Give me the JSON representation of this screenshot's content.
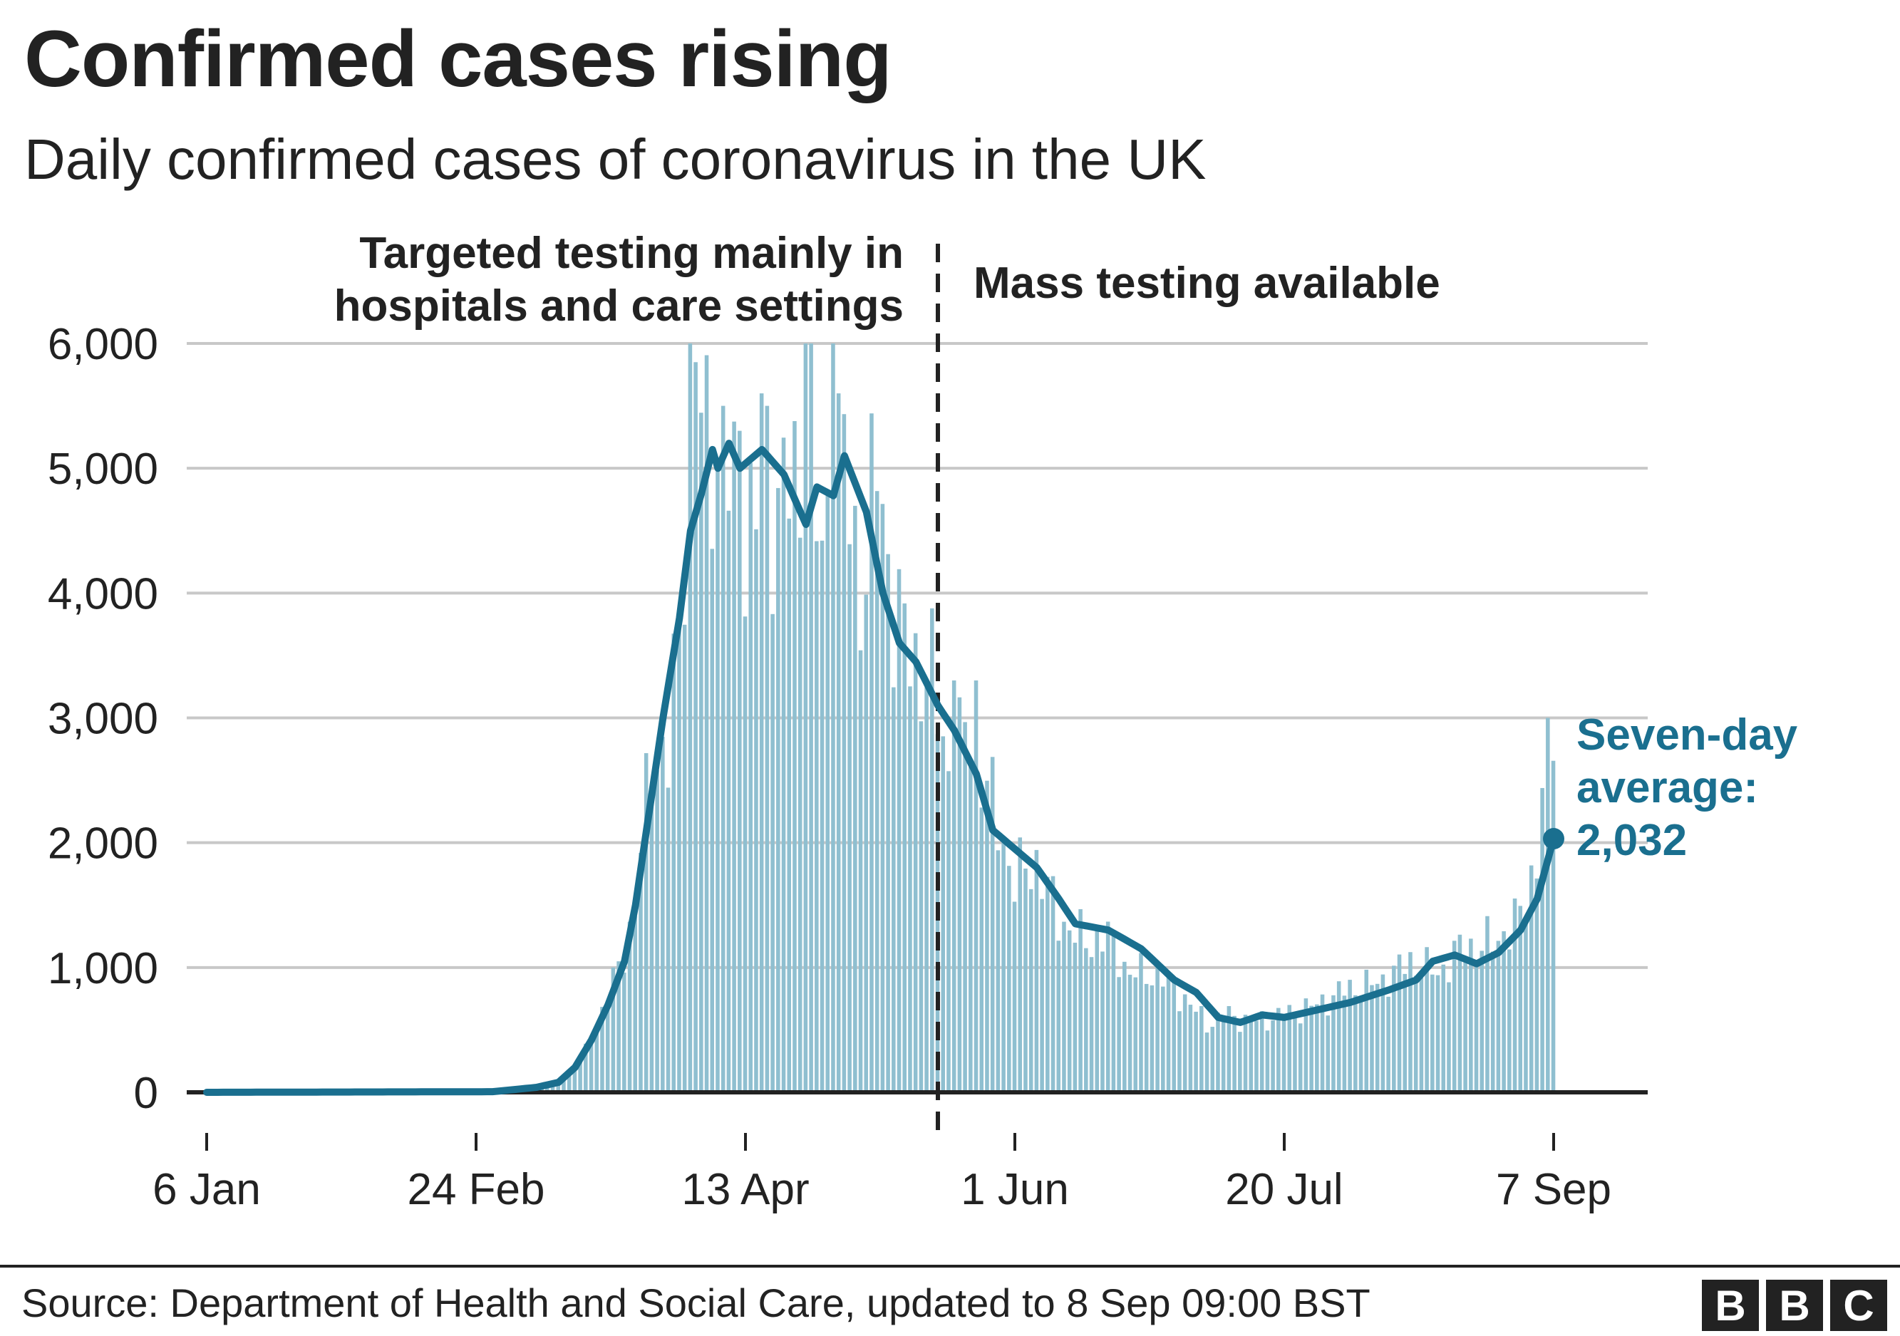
{
  "title": "Confirmed cases rising",
  "subtitle": "Daily confirmed cases of coronavirus in the UK",
  "source": "Source: Department of Health and Social Care, updated to 8 Sep 09:00 BST",
  "logo": "BBC",
  "colors": {
    "bars": "#8fbfd0",
    "line": "#1a6f8f",
    "grid": "#c8c8c8",
    "axis": "#222222"
  },
  "chart_data": {
    "type": "bar",
    "title": "Confirmed cases rising",
    "subtitle": "Daily confirmed cases of coronavirus in the UK",
    "xlabel": "",
    "ylabel": "",
    "ylim": [
      0,
      6000
    ],
    "yticks": [
      0,
      1000,
      2000,
      3000,
      4000,
      5000,
      6000
    ],
    "ytick_labels": [
      "0",
      "1,000",
      "2,000",
      "3,000",
      "4,000",
      "5,000",
      "6,000"
    ],
    "x_start": "2020-01-06",
    "x_end": "2020-09-07",
    "xticks": [
      {
        "date": "2020-01-06",
        "label": "6 Jan"
      },
      {
        "date": "2020-02-24",
        "label": "24 Feb"
      },
      {
        "date": "2020-04-13",
        "label": "13 Apr"
      },
      {
        "date": "2020-06-01",
        "label": "1 Jun"
      },
      {
        "date": "2020-07-20",
        "label": "20 Jul"
      },
      {
        "date": "2020-09-07",
        "label": "7 Sep"
      }
    ],
    "grid": true,
    "regions": [
      {
        "label_lines": [
          "Targeted testing mainly in",
          "hospitals and care settings"
        ]
      },
      {
        "label_lines": [
          "Mass testing available"
        ]
      }
    ],
    "divider_date": "2020-05-18",
    "series": [
      {
        "kind": "bars",
        "keypoints": [
          [
            "2020-01-06",
            0
          ],
          [
            "2020-02-28",
            5
          ],
          [
            "2020-03-06",
            40
          ],
          [
            "2020-03-09",
            60
          ],
          [
            "2020-03-12",
            130
          ],
          [
            "2020-03-15",
            330
          ],
          [
            "2020-03-18",
            650
          ],
          [
            "2020-03-21",
            1000
          ],
          [
            "2020-03-24",
            1450
          ],
          [
            "2020-03-27",
            2800
          ],
          [
            "2020-03-30",
            2600
          ],
          [
            "2020-04-02",
            4500
          ],
          [
            "2020-04-05",
            5300
          ],
          [
            "2020-04-08",
            5200
          ],
          [
            "2020-04-10",
            4900
          ],
          [
            "2020-04-13",
            4500
          ],
          [
            "2020-04-16",
            4600
          ],
          [
            "2020-04-20",
            4800
          ],
          [
            "2020-04-24",
            4900
          ],
          [
            "2020-04-27",
            4300
          ],
          [
            "2020-04-30",
            5300
          ],
          [
            "2020-05-04",
            4000
          ],
          [
            "2020-05-07",
            5000
          ],
          [
            "2020-05-10",
            3900
          ],
          [
            "2020-05-13",
            3500
          ],
          [
            "2020-05-17",
            3300
          ],
          [
            "2020-05-20",
            2600
          ],
          [
            "2020-05-24",
            2900
          ],
          [
            "2020-05-28",
            2300
          ],
          [
            "2020-06-01",
            1700
          ],
          [
            "2020-06-05",
            1850
          ],
          [
            "2020-06-09",
            1400
          ],
          [
            "2020-06-14",
            1200
          ],
          [
            "2020-06-18",
            1250
          ],
          [
            "2020-06-22",
            950
          ],
          [
            "2020-06-27",
            950
          ],
          [
            "2020-07-02",
            750
          ],
          [
            "2020-07-06",
            550
          ],
          [
            "2020-07-10",
            620
          ],
          [
            "2020-07-14",
            560
          ],
          [
            "2020-07-20",
            620
          ],
          [
            "2020-07-26",
            700
          ],
          [
            "2020-07-31",
            820
          ],
          [
            "2020-08-06",
            870
          ],
          [
            "2020-08-12",
            1050
          ],
          [
            "2020-08-17",
            950
          ],
          [
            "2020-08-21",
            1150
          ],
          [
            "2020-08-27",
            1200
          ],
          [
            "2020-09-01",
            1400
          ],
          [
            "2020-09-04",
            1900
          ],
          [
            "2020-09-06",
            2950
          ],
          [
            "2020-09-07",
            2950
          ]
        ],
        "peaks": [
          [
            "2020-04-03",
            6000
          ],
          [
            "2020-04-04",
            5850
          ],
          [
            "2020-04-09",
            5500
          ],
          [
            "2020-04-12",
            5300
          ],
          [
            "2020-04-16",
            5600
          ],
          [
            "2020-04-17",
            5500
          ],
          [
            "2020-04-24",
            6000
          ],
          [
            "2020-04-25",
            6000
          ],
          [
            "2020-04-29",
            6000
          ],
          [
            "2020-04-30",
            5600
          ],
          [
            "2020-05-21",
            3300
          ],
          [
            "2020-05-25",
            3300
          ],
          [
            "2020-09-06",
            3000
          ]
        ]
      },
      {
        "kind": "line",
        "name": "Seven-day average",
        "keypoints": [
          [
            "2020-01-06",
            0
          ],
          [
            "2020-02-27",
            5
          ],
          [
            "2020-03-06",
            40
          ],
          [
            "2020-03-10",
            80
          ],
          [
            "2020-03-13",
            200
          ],
          [
            "2020-03-16",
            420
          ],
          [
            "2020-03-19",
            700
          ],
          [
            "2020-03-22",
            1050
          ],
          [
            "2020-03-24",
            1500
          ],
          [
            "2020-03-26",
            2100
          ],
          [
            "2020-03-29",
            3000
          ],
          [
            "2020-04-01",
            3800
          ],
          [
            "2020-04-03",
            4500
          ],
          [
            "2020-04-05",
            4800
          ],
          [
            "2020-04-07",
            5150
          ],
          [
            "2020-04-08",
            5000
          ],
          [
            "2020-04-10",
            5200
          ],
          [
            "2020-04-12",
            5000
          ],
          [
            "2020-04-16",
            5150
          ],
          [
            "2020-04-20",
            4950
          ],
          [
            "2020-04-24",
            4550
          ],
          [
            "2020-04-26",
            4850
          ],
          [
            "2020-04-29",
            4780
          ],
          [
            "2020-05-01",
            5100
          ],
          [
            "2020-05-05",
            4650
          ],
          [
            "2020-05-08",
            4000
          ],
          [
            "2020-05-11",
            3600
          ],
          [
            "2020-05-14",
            3450
          ],
          [
            "2020-05-18",
            3100
          ],
          [
            "2020-05-21",
            2900
          ],
          [
            "2020-05-25",
            2550
          ],
          [
            "2020-05-28",
            2100
          ],
          [
            "2020-06-01",
            1950
          ],
          [
            "2020-06-05",
            1800
          ],
          [
            "2020-06-09",
            1550
          ],
          [
            "2020-06-12",
            1350
          ],
          [
            "2020-06-18",
            1300
          ],
          [
            "2020-06-24",
            1150
          ],
          [
            "2020-06-30",
            900
          ],
          [
            "2020-07-04",
            800
          ],
          [
            "2020-07-08",
            600
          ],
          [
            "2020-07-12",
            560
          ],
          [
            "2020-07-16",
            620
          ],
          [
            "2020-07-20",
            600
          ],
          [
            "2020-07-27",
            670
          ],
          [
            "2020-08-01",
            720
          ],
          [
            "2020-08-08",
            820
          ],
          [
            "2020-08-13",
            900
          ],
          [
            "2020-08-16",
            1050
          ],
          [
            "2020-08-20",
            1100
          ],
          [
            "2020-08-24",
            1030
          ],
          [
            "2020-08-28",
            1120
          ],
          [
            "2020-09-01",
            1300
          ],
          [
            "2020-09-04",
            1550
          ],
          [
            "2020-09-07",
            2032
          ]
        ]
      }
    ],
    "latest_point": {
      "date": "2020-09-07",
      "value": 2032
    },
    "annotation_lines": [
      "Seven-day",
      "average:",
      "2,032"
    ]
  }
}
